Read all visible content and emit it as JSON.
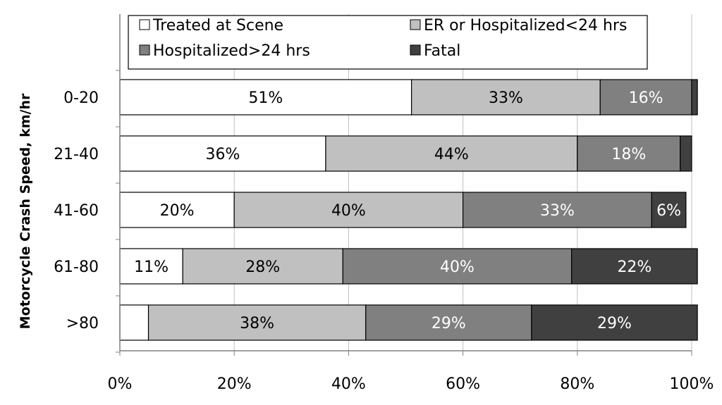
{
  "chart_data": {
    "type": "bar",
    "orientation": "horizontal",
    "stacked": true,
    "percent_stacked": true,
    "title": "",
    "ylabel": "Motorcycle Crash Speed, km/hr",
    "xlabel": "",
    "xlim": [
      0,
      100
    ],
    "x_ticks": [
      "0%",
      "20%",
      "40%",
      "60%",
      "80%",
      "100%"
    ],
    "grid": true,
    "legend_position": "top",
    "categories": [
      "0-20",
      "21-40",
      "41-60",
      "61-80",
      ">80"
    ],
    "series": [
      {
        "name": "Treated at Scene",
        "color": "#ffffff",
        "label_color": "#000000",
        "values": [
          51,
          36,
          20,
          11,
          5
        ],
        "labels": [
          "51%",
          "36%",
          "20%",
          "11%",
          ""
        ]
      },
      {
        "name": "ER or Hospitalized<24 hrs",
        "color": "#c0c0c0",
        "label_color": "#000000",
        "values": [
          33,
          44,
          40,
          28,
          38
        ],
        "labels": [
          "33%",
          "44%",
          "40%",
          "28%",
          "38%"
        ]
      },
      {
        "name": "Hospitalized>24 hrs",
        "color": "#808080",
        "label_color": "#ffffff",
        "values": [
          16,
          18,
          33,
          40,
          29
        ],
        "labels": [
          "16%",
          "18%",
          "33%",
          "40%",
          "29%"
        ]
      },
      {
        "name": "Fatal",
        "color": "#404040",
        "label_color": "#ffffff",
        "values": [
          1,
          2,
          6,
          22,
          29
        ],
        "labels": [
          "",
          "",
          "6%",
          "22%",
          "29%"
        ]
      }
    ]
  }
}
